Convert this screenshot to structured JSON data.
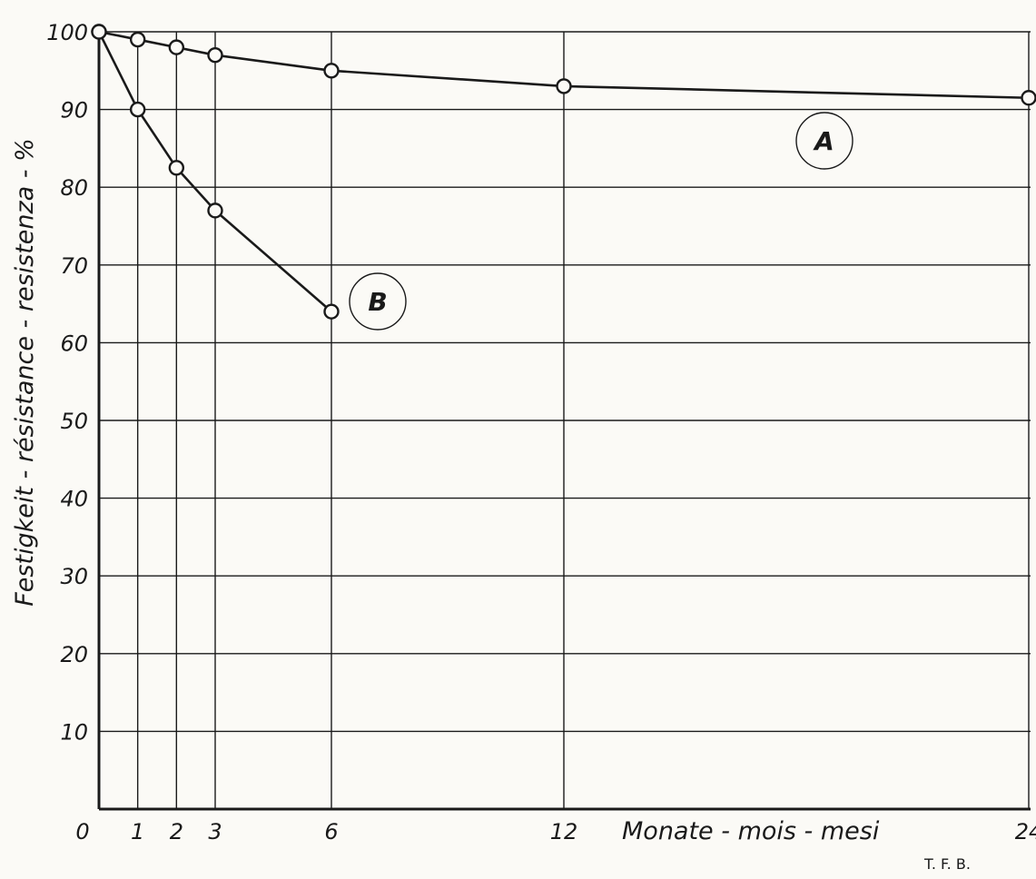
{
  "chart_data": {
    "type": "line",
    "ylabel": "Festigkeit - résistance - resistenza - %",
    "xlabel": "Monate - mois - mesi",
    "credit": "T. F. B.",
    "xlim": [
      0,
      24
    ],
    "ylim": [
      0,
      100
    ],
    "x_ticks": [
      0,
      1,
      2,
      3,
      6,
      12,
      24
    ],
    "y_ticks": [
      10,
      20,
      30,
      40,
      50,
      60,
      70,
      80,
      90,
      100
    ],
    "grid": true,
    "series": [
      {
        "name": "A",
        "x": [
          0,
          1,
          2,
          3,
          6,
          12,
          24
        ],
        "y": [
          100,
          99,
          98,
          97,
          95,
          93,
          91.5
        ]
      },
      {
        "name": "B",
        "x": [
          0,
          1,
          2,
          3,
          6
        ],
        "y": [
          100,
          90,
          82.5,
          77,
          64
        ]
      }
    ],
    "colors": {
      "ink": "#1a1a1a",
      "paper": "#fbfaf6"
    }
  }
}
